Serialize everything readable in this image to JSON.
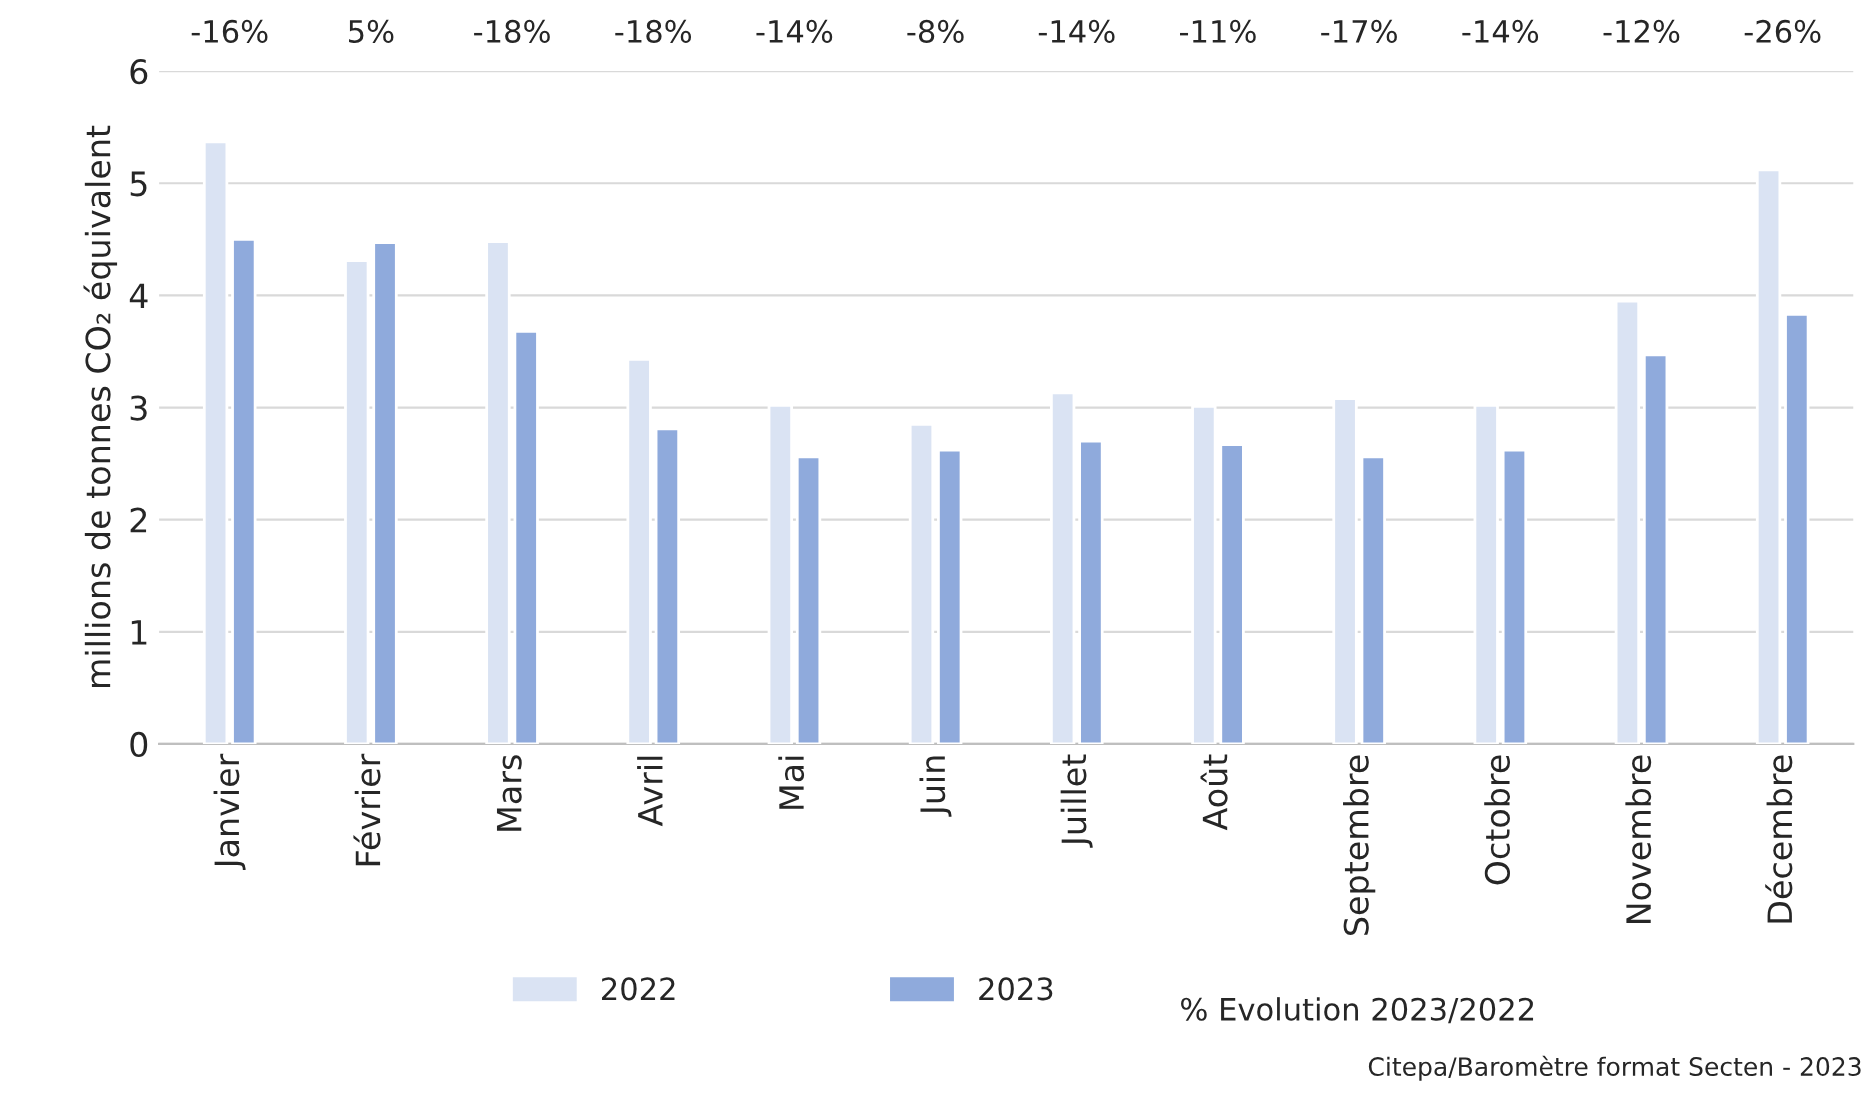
{
  "chart_data": {
    "type": "bar",
    "ylabel": "millions de tonnes CO₂ équivalent",
    "categories": [
      "Janvier",
      "Février",
      "Mars",
      "Avril",
      "Mai",
      "Juin",
      "Juillet",
      "Août",
      "Septembre",
      "Octobre",
      "Novembre",
      "Décembre"
    ],
    "series": [
      {
        "name": "2022",
        "color": "#dae3f3",
        "values": [
          5.37,
          4.31,
          4.48,
          3.43,
          3.02,
          2.85,
          3.13,
          3.01,
          3.08,
          3.02,
          3.95,
          5.12
        ]
      },
      {
        "name": "2023",
        "color": "#8faadc",
        "values": [
          4.5,
          4.47,
          3.68,
          2.81,
          2.56,
          2.62,
          2.7,
          2.67,
          2.56,
          2.62,
          3.47,
          3.83
        ]
      }
    ],
    "ylim": [
      0,
      6
    ],
    "yticks": [
      0,
      1,
      2,
      3,
      4,
      5,
      6
    ],
    "grid": "y",
    "legend": "bottom",
    "annotations": [
      "-16%",
      "5%",
      "-18%",
      "-18%",
      "-14%",
      "-8%",
      "-14%",
      "-11%",
      "-17%",
      "-14%",
      "-12%",
      "-26%",
      "% Evolution 2023/2022",
      "Citepa/Baromètre format Secten - 2023"
    ]
  }
}
